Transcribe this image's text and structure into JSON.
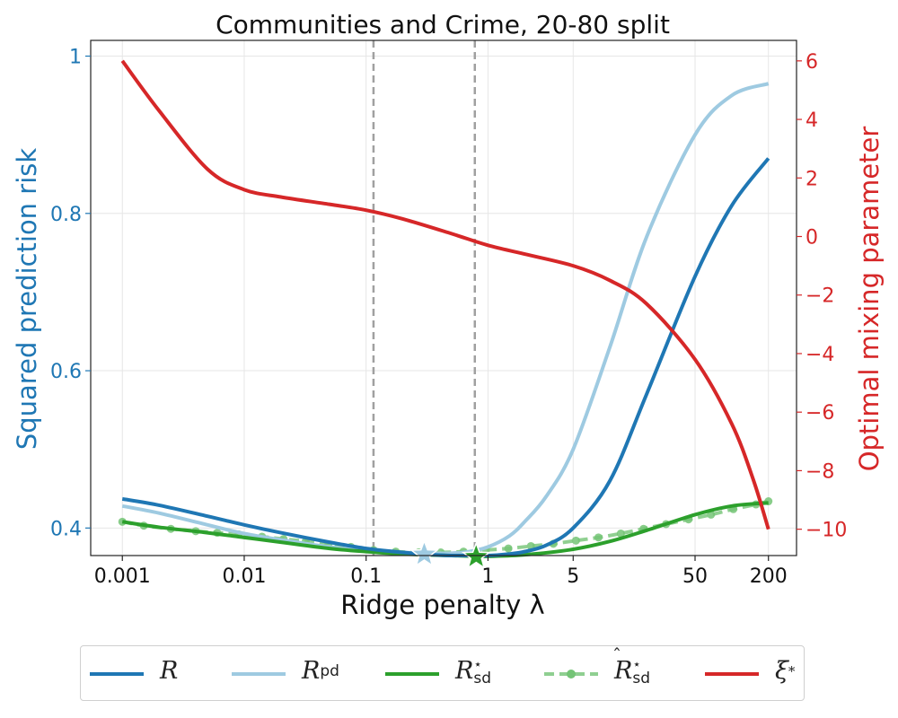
{
  "chart_data": {
    "type": "line",
    "title": "Communities and Crime, 20-80 split",
    "xlabel": "Ridge penalty λ",
    "ylabel_left": "Squared prediction risk",
    "ylabel_right": "Optimal mixing parameter",
    "x_scale": "log",
    "x_ticks": [
      0.001,
      0.01,
      0.1,
      1,
      5,
      50,
      200
    ],
    "x_tick_labels": [
      "0.001",
      "0.01",
      "0.1",
      "1",
      "5",
      "50",
      "200"
    ],
    "xlim": [
      0.00055,
      340
    ],
    "y_left_ticks": [
      0.4,
      0.6,
      0.8,
      1.0
    ],
    "y_left_tick_labels": [
      "0.4",
      "0.6",
      "0.8",
      "1"
    ],
    "ylim_left": [
      0.365,
      1.02
    ],
    "y_right_ticks": [
      -10,
      -8,
      -6,
      -4,
      -2,
      0,
      2,
      4,
      6
    ],
    "y_right_tick_labels": [
      "−10",
      "−8",
      "−6",
      "−4",
      "−2",
      "0",
      "2",
      "4",
      "6"
    ],
    "ylim_right": [
      -10.9,
      6.7
    ],
    "grid": true,
    "vlines": [
      0.115,
      0.78
    ],
    "series": [
      {
        "key": "R",
        "axis": "left",
        "color": "#1f77b4",
        "style": "solid",
        "x": [
          0.001,
          0.002,
          0.005,
          0.01,
          0.02,
          0.05,
          0.1,
          0.2,
          0.35,
          0.5,
          0.7,
          1,
          1.5,
          2,
          3,
          5,
          10,
          20,
          50,
          100,
          200
        ],
        "y": [
          0.437,
          0.429,
          0.415,
          0.404,
          0.394,
          0.382,
          0.374,
          0.369,
          0.366,
          0.365,
          0.365,
          0.365,
          0.367,
          0.37,
          0.378,
          0.4,
          0.46,
          0.57,
          0.72,
          0.81,
          0.87
        ]
      },
      {
        "key": "R_pd",
        "axis": "left",
        "color": "#9ecae1",
        "style": "solid",
        "x": [
          0.001,
          0.002,
          0.005,
          0.01,
          0.02,
          0.05,
          0.1,
          0.2,
          0.3,
          0.5,
          0.7,
          1,
          1.5,
          2,
          3,
          5,
          10,
          20,
          50,
          100,
          200
        ],
        "y": [
          0.428,
          0.419,
          0.404,
          0.393,
          0.385,
          0.376,
          0.371,
          0.369,
          0.368,
          0.368,
          0.37,
          0.376,
          0.39,
          0.408,
          0.44,
          0.5,
          0.63,
          0.77,
          0.9,
          0.95,
          0.965
        ]
      },
      {
        "key": "R_sd",
        "axis": "left",
        "color": "#2ca02c",
        "style": "solid",
        "x": [
          0.001,
          0.002,
          0.005,
          0.01,
          0.02,
          0.05,
          0.1,
          0.2,
          0.5,
          0.8,
          1,
          2,
          5,
          10,
          20,
          50,
          100,
          200
        ],
        "y": [
          0.408,
          0.401,
          0.394,
          0.388,
          0.382,
          0.374,
          0.37,
          0.367,
          0.365,
          0.364,
          0.364,
          0.366,
          0.373,
          0.383,
          0.397,
          0.417,
          0.428,
          0.432
        ]
      },
      {
        "key": "R_sd_hat",
        "axis": "left",
        "color": "#74c476",
        "style": "dashed-markers",
        "x": [
          0.001,
          0.0015,
          0.0025,
          0.004,
          0.006,
          0.009,
          0.014,
          0.021,
          0.032,
          0.049,
          0.075,
          0.115,
          0.175,
          0.27,
          0.41,
          0.63,
          0.96,
          1.47,
          2.25,
          3.44,
          5.27,
          8.06,
          12.3,
          18.9,
          28.9,
          44.2,
          67.6,
          103,
          158,
          200
        ],
        "y": [
          0.408,
          0.403,
          0.399,
          0.396,
          0.394,
          0.392,
          0.389,
          0.386,
          0.383,
          0.379,
          0.376,
          0.372,
          0.37,
          0.369,
          0.369,
          0.37,
          0.372,
          0.374,
          0.377,
          0.38,
          0.384,
          0.388,
          0.393,
          0.399,
          0.405,
          0.411,
          0.417,
          0.424,
          0.43,
          0.434
        ]
      },
      {
        "key": "xi",
        "axis": "right",
        "color": "#d62728",
        "style": "solid",
        "x": [
          0.001,
          0.002,
          0.005,
          0.01,
          0.02,
          0.05,
          0.1,
          0.2,
          0.5,
          1,
          2,
          5,
          10,
          20,
          50,
          100,
          150,
          200
        ],
        "y": [
          6.0,
          4.3,
          2.3,
          1.6,
          1.35,
          1.1,
          0.9,
          0.6,
          0.1,
          -0.3,
          -0.6,
          -1.0,
          -1.5,
          -2.3,
          -4.2,
          -6.4,
          -8.3,
          -10.0
        ]
      }
    ],
    "stars": [
      {
        "x": 0.3,
        "y": 0.3665,
        "color": "#9ecae1"
      },
      {
        "x": 0.8,
        "y": 0.3635,
        "color": "#2ca02c"
      }
    ],
    "legend": {
      "placement": "bottom-outside",
      "entries": [
        {
          "key": "R",
          "text": "R",
          "sub": "",
          "sup": "",
          "hat": false
        },
        {
          "key": "R_pd",
          "text": "R",
          "sub": "pd",
          "sup": "",
          "hat": false
        },
        {
          "key": "R_sd",
          "text": "R",
          "sub": "sd",
          "sup": "⋆",
          "hat": false
        },
        {
          "key": "R_sd_hat",
          "text": "R",
          "sub": "sd",
          "sup": "⋆",
          "hat": true
        },
        {
          "key": "xi",
          "text": "ξ",
          "sub": "",
          "sup": "*",
          "hat": false
        }
      ]
    }
  }
}
